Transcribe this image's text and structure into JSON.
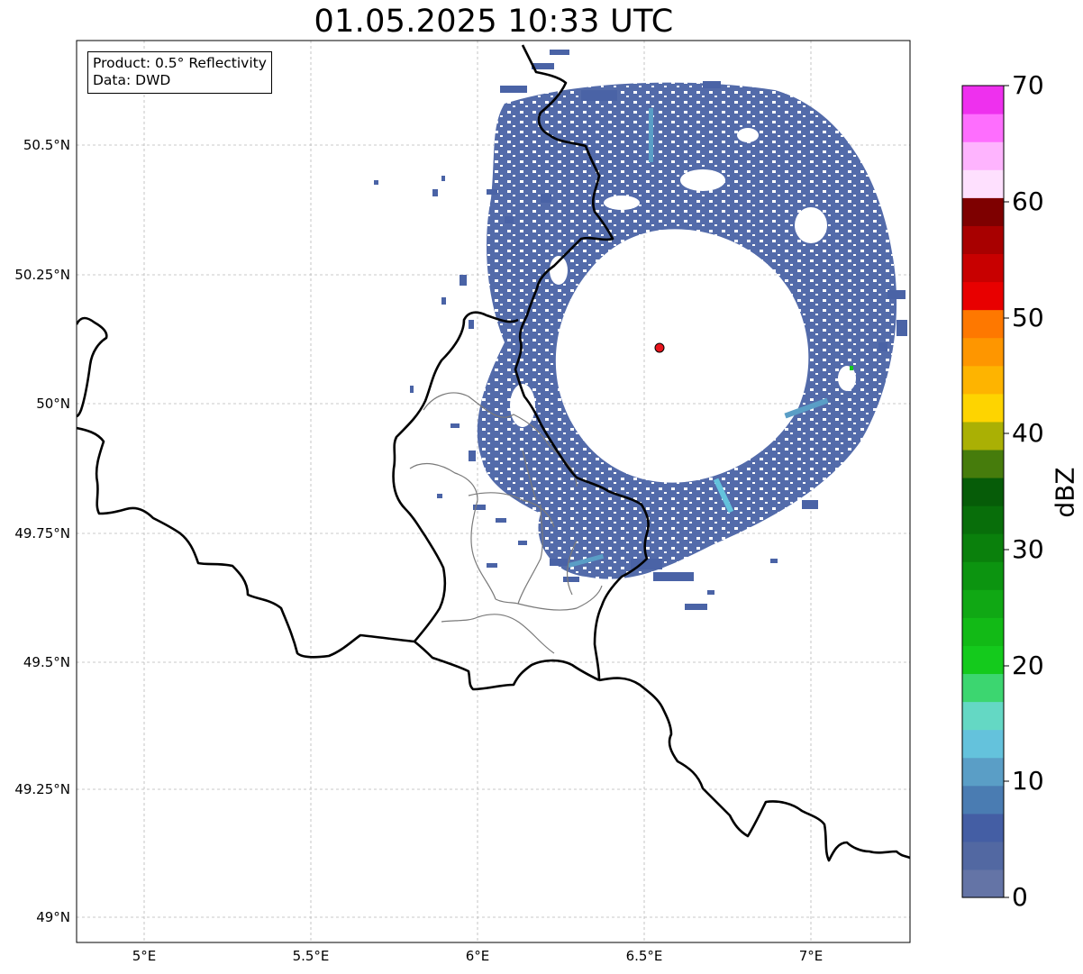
{
  "title": "01.05.2025 10:33 UTC",
  "info_box": {
    "product_line": "Product: 0.5° Reflectivity",
    "data_line": "Data: DWD"
  },
  "map": {
    "lon_range": [
      4.8,
      7.3
    ],
    "lat_range": [
      48.95,
      50.7
    ],
    "lat_ticks": [
      "50.5°N",
      "50.25°N",
      "50°N",
      "49.75°N",
      "49.5°N",
      "49.25°N",
      "49°N"
    ],
    "lon_ticks": [
      "5°E",
      "5.5°E",
      "6°E",
      "6.5°E",
      "7°E"
    ],
    "grid": true,
    "radar_site": {
      "lon": 6.55,
      "lat": 50.11,
      "color": "#e8141c"
    },
    "echo_color": "#4a63a6"
  },
  "colorbar": {
    "label": "dBZ",
    "range": [
      0,
      70
    ],
    "tick_labels": [
      "0",
      "10",
      "20",
      "30",
      "40",
      "50",
      "60",
      "70"
    ],
    "colors": [
      "#6474a6",
      "#5268a2",
      "#445ea4",
      "#4a7cb2",
      "#5a9ec6",
      "#64c2dc",
      "#64d8c4",
      "#3cd670",
      "#14ca1c",
      "#12ba16",
      "#10a814",
      "#0c9410",
      "#0a800c",
      "#086e0a",
      "#065c08",
      "#467c0c",
      "#aab004",
      "#fed400",
      "#feb400",
      "#fe9600",
      "#fe7800",
      "#e80000",
      "#c80000",
      "#a80000",
      "#7e0000",
      "#fee0fe",
      "#feb4fe",
      "#fe6efe",
      "#ee30ee"
    ]
  }
}
